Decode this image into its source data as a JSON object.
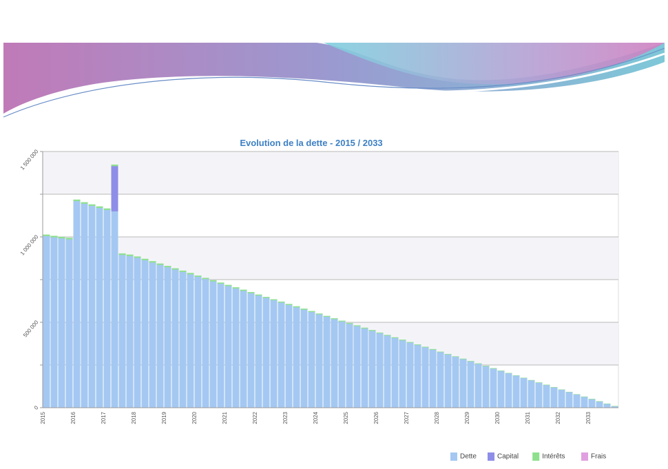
{
  "chart_data": {
    "type": "stacked_bar",
    "title": "Evolution de la dette  -  2015 / 2033",
    "categories": [
      "2015",
      null,
      null,
      null,
      "2016",
      null,
      null,
      null,
      "2017",
      null,
      null,
      null,
      "2018",
      null,
      null,
      null,
      "2019",
      null,
      null,
      null,
      "2020",
      null,
      null,
      null,
      "2021",
      null,
      null,
      null,
      "2022",
      null,
      null,
      null,
      "2023",
      null,
      null,
      null,
      "2024",
      null,
      null,
      null,
      "2025",
      null,
      null,
      null,
      "2026",
      null,
      null,
      null,
      "2027",
      null,
      null,
      null,
      "2028",
      null,
      null,
      null,
      "2029",
      null,
      null,
      null,
      "2030",
      null,
      null,
      null,
      "2031",
      null,
      null,
      null,
      "2032",
      null,
      null,
      null,
      "2033",
      null,
      null,
      null
    ],
    "series": [
      {
        "name": "Dette",
        "color": "#a4c8f2",
        "values": [
          1005000,
          998000,
          992000,
          986000,
          1210000,
          1195000,
          1182000,
          1170000,
          1158000,
          1150000,
          895000,
          888000,
          878000,
          864200,
          850400,
          836600,
          822800,
          809000,
          795200,
          781400,
          767600,
          753800,
          740000,
          726200,
          712400,
          698600,
          684800,
          671000,
          657200,
          643400,
          629600,
          615800,
          602000,
          588200,
          574400,
          560600,
          546800,
          533000,
          519200,
          505400,
          491600,
          477800,
          464000,
          450200,
          436400,
          422600,
          408800,
          395000,
          381200,
          367400,
          353600,
          339800,
          326000,
          312200,
          298400,
          284600,
          270800,
          257000,
          243200,
          229400,
          215600,
          201800,
          188000,
          174200,
          160400,
          146600,
          132800,
          119000,
          105200,
          91400,
          77600,
          63800,
          50000,
          36200,
          22400,
          8600
        ]
      },
      {
        "name": "Capital",
        "color": "#8e8ee8",
        "values": [
          0,
          0,
          0,
          0,
          0,
          0,
          0,
          0,
          0,
          265000,
          0,
          0,
          0,
          0,
          0,
          0,
          0,
          0,
          0,
          0,
          0,
          0,
          0,
          0,
          0,
          0,
          0,
          0,
          0,
          0,
          0,
          0,
          0,
          0,
          0,
          0,
          0,
          0,
          0,
          0,
          0,
          0,
          0,
          0,
          0,
          0,
          0,
          0,
          0,
          0,
          0,
          0,
          0,
          0,
          0,
          0,
          0,
          0,
          0,
          0,
          0,
          0,
          0,
          0,
          0,
          0,
          0,
          0,
          0,
          0,
          0,
          0,
          0,
          0,
          0,
          0
        ]
      },
      {
        "name": "Intérêts",
        "color": "#8ee08e",
        "values": [
          8000,
          8000,
          8000,
          8000,
          8000,
          8000,
          8000,
          8000,
          8000,
          8000,
          8000,
          8000,
          7000,
          7000,
          7000,
          7000,
          7000,
          7000,
          7000,
          7000,
          6000,
          6000,
          6000,
          6000,
          6000,
          6000,
          6000,
          6000,
          5000,
          5000,
          5000,
          5000,
          5000,
          5000,
          5000,
          5000,
          4000,
          4000,
          4000,
          4000,
          4000,
          4000,
          4000,
          4000,
          3000,
          3000,
          3000,
          3000,
          3000,
          3000,
          3000,
          3000,
          2000,
          2000,
          2000,
          2000,
          2000,
          2000,
          2000,
          2000,
          1000,
          1000,
          1000,
          1000,
          1000,
          1000,
          1000,
          1000,
          1000,
          1000,
          1000,
          1000,
          1000,
          1000,
          1000,
          1000
        ]
      },
      {
        "name": "Frais",
        "color": "#e0a0e0",
        "values": [
          0,
          0,
          0,
          0,
          0,
          0,
          0,
          0,
          0,
          0,
          0,
          0,
          0,
          0,
          0,
          0,
          0,
          0,
          0,
          0,
          0,
          0,
          0,
          0,
          0,
          0,
          0,
          0,
          0,
          0,
          0,
          0,
          0,
          0,
          0,
          0,
          0,
          0,
          0,
          0,
          0,
          0,
          0,
          0,
          0,
          0,
          0,
          0,
          0,
          0,
          0,
          0,
          0,
          0,
          0,
          0,
          0,
          0,
          0,
          0,
          0,
          0,
          0,
          0,
          0,
          0,
          0,
          0,
          0,
          0,
          0,
          0,
          0,
          0,
          0,
          0
        ]
      }
    ],
    "ylim": [
      0,
      1500000
    ],
    "yticks": [
      0,
      {
        "value": 500000,
        "label": "500 000"
      },
      {
        "value": 1000000,
        "label": "1 000 000"
      },
      {
        "value": 1500000,
        "label": "1 500 000"
      }
    ],
    "minor_yticks": [
      250000,
      750000,
      1250000
    ],
    "grid": true,
    "legend": "bottom-right"
  }
}
